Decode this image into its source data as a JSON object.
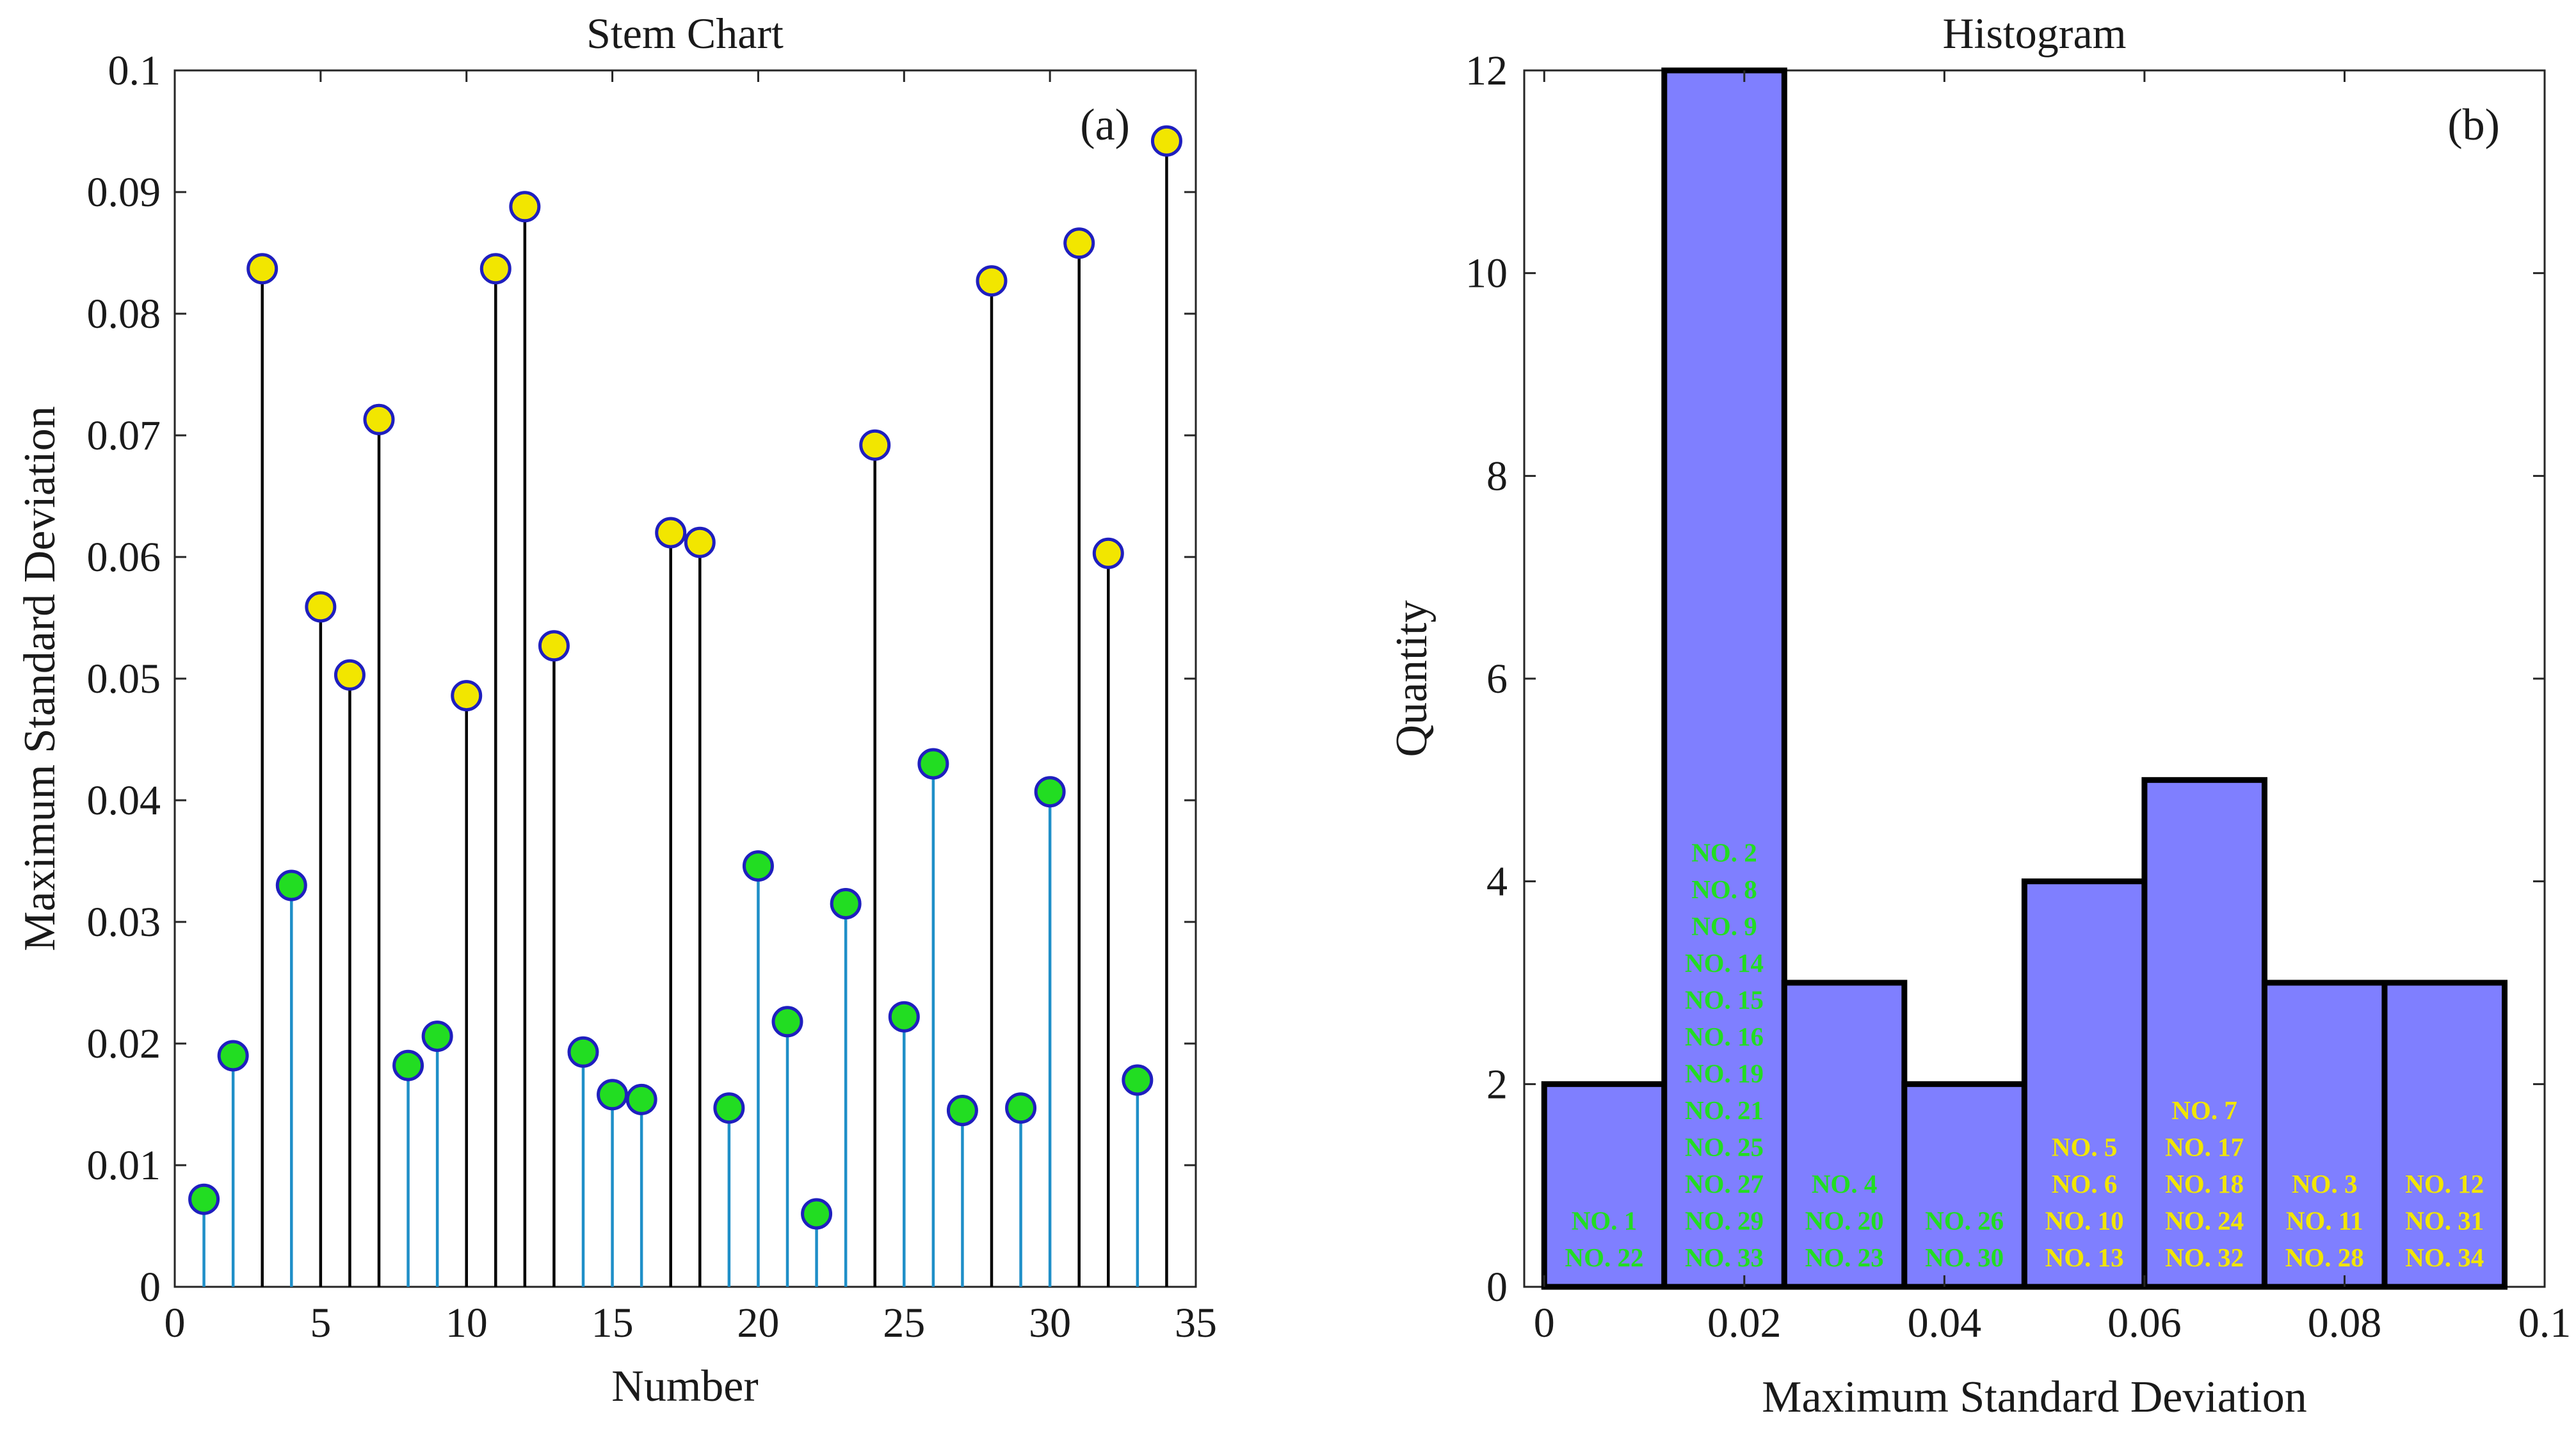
{
  "chart_data": [
    {
      "type": "stem",
      "title": "Stem Chart",
      "xlabel": "Number",
      "ylabel": "Maximum Standard Deviation",
      "panel_label": "(a)",
      "xlim": [
        0,
        35
      ],
      "ylim": [
        0,
        0.1
      ],
      "xticks": [
        "0",
        "5",
        "10",
        "15",
        "20",
        "25",
        "30",
        "35"
      ],
      "yticks": [
        "0",
        "0.01",
        "0.02",
        "0.03",
        "0.04",
        "0.05",
        "0.06",
        "0.07",
        "0.08",
        "0.09",
        "0.1"
      ],
      "x": [
        1,
        2,
        3,
        4,
        5,
        6,
        7,
        8,
        9,
        10,
        11,
        12,
        13,
        14,
        15,
        16,
        17,
        18,
        19,
        20,
        21,
        22,
        23,
        24,
        25,
        26,
        27,
        28,
        29,
        30,
        31,
        32,
        33,
        34
      ],
      "y": [
        0.0072,
        0.019,
        0.0837,
        0.033,
        0.0559,
        0.0503,
        0.0713,
        0.0182,
        0.0206,
        0.0486,
        0.0837,
        0.0888,
        0.0527,
        0.0193,
        0.0158,
        0.0154,
        0.062,
        0.0612,
        0.0147,
        0.0346,
        0.0218,
        0.006,
        0.0315,
        0.0692,
        0.0222,
        0.043,
        0.0145,
        0.0827,
        0.0147,
        0.0407,
        0.0858,
        0.0603,
        0.017,
        0.0942
      ],
      "threshold": 0.048,
      "colors": {
        "low_marker": "#22dd22",
        "high_marker": "#f2e600",
        "marker_edge": "#1f1fbf",
        "low_stem": "#1f8fc8",
        "high_stem": "#000000"
      }
    },
    {
      "type": "histogram",
      "title": "Histogram",
      "xlabel": "Maximum Standard Deviation",
      "ylabel": "Quantity",
      "panel_label": "(b)",
      "xlim": [
        -0.002,
        0.1
      ],
      "ylim": [
        0,
        12
      ],
      "xticks": [
        "0",
        "0.02",
        "0.04",
        "0.06",
        "0.08",
        "0.1"
      ],
      "yticks": [
        "0",
        "2",
        "4",
        "6",
        "8",
        "10",
        "12"
      ],
      "bin_edges": [
        0,
        0.012,
        0.024,
        0.036,
        0.048,
        0.06,
        0.072,
        0.084,
        0.096
      ],
      "counts": [
        2,
        12,
        3,
        2,
        4,
        5,
        3,
        3
      ],
      "bar_color": "#7f7fff",
      "bin_labels": [
        [
          "NO. 1",
          "NO. 22"
        ],
        [
          "NO. 2",
          "NO. 8",
          "NO. 9",
          "NO. 14",
          "NO. 15",
          "NO. 16",
          "NO. 19",
          "NO. 21",
          "NO. 25",
          "NO. 27",
          "NO. 29",
          "NO. 33"
        ],
        [
          "NO. 4",
          "NO. 20",
          "NO. 23"
        ],
        [
          "NO. 26",
          "NO. 30"
        ],
        [
          "NO. 5",
          "NO. 6",
          "NO. 10",
          "NO. 13"
        ],
        [
          "NO. 7",
          "NO. 17",
          "NO. 18",
          "NO. 24",
          "NO. 32"
        ],
        [
          "NO. 3",
          "NO. 11",
          "NO. 28"
        ],
        [
          "NO. 12",
          "NO. 31",
          "NO. 34"
        ]
      ],
      "label_colors": [
        "#22dd22",
        "#22dd22",
        "#22dd22",
        "#22dd22",
        "#f2e600",
        "#f2e600",
        "#f2e600",
        "#f2e600"
      ]
    }
  ]
}
